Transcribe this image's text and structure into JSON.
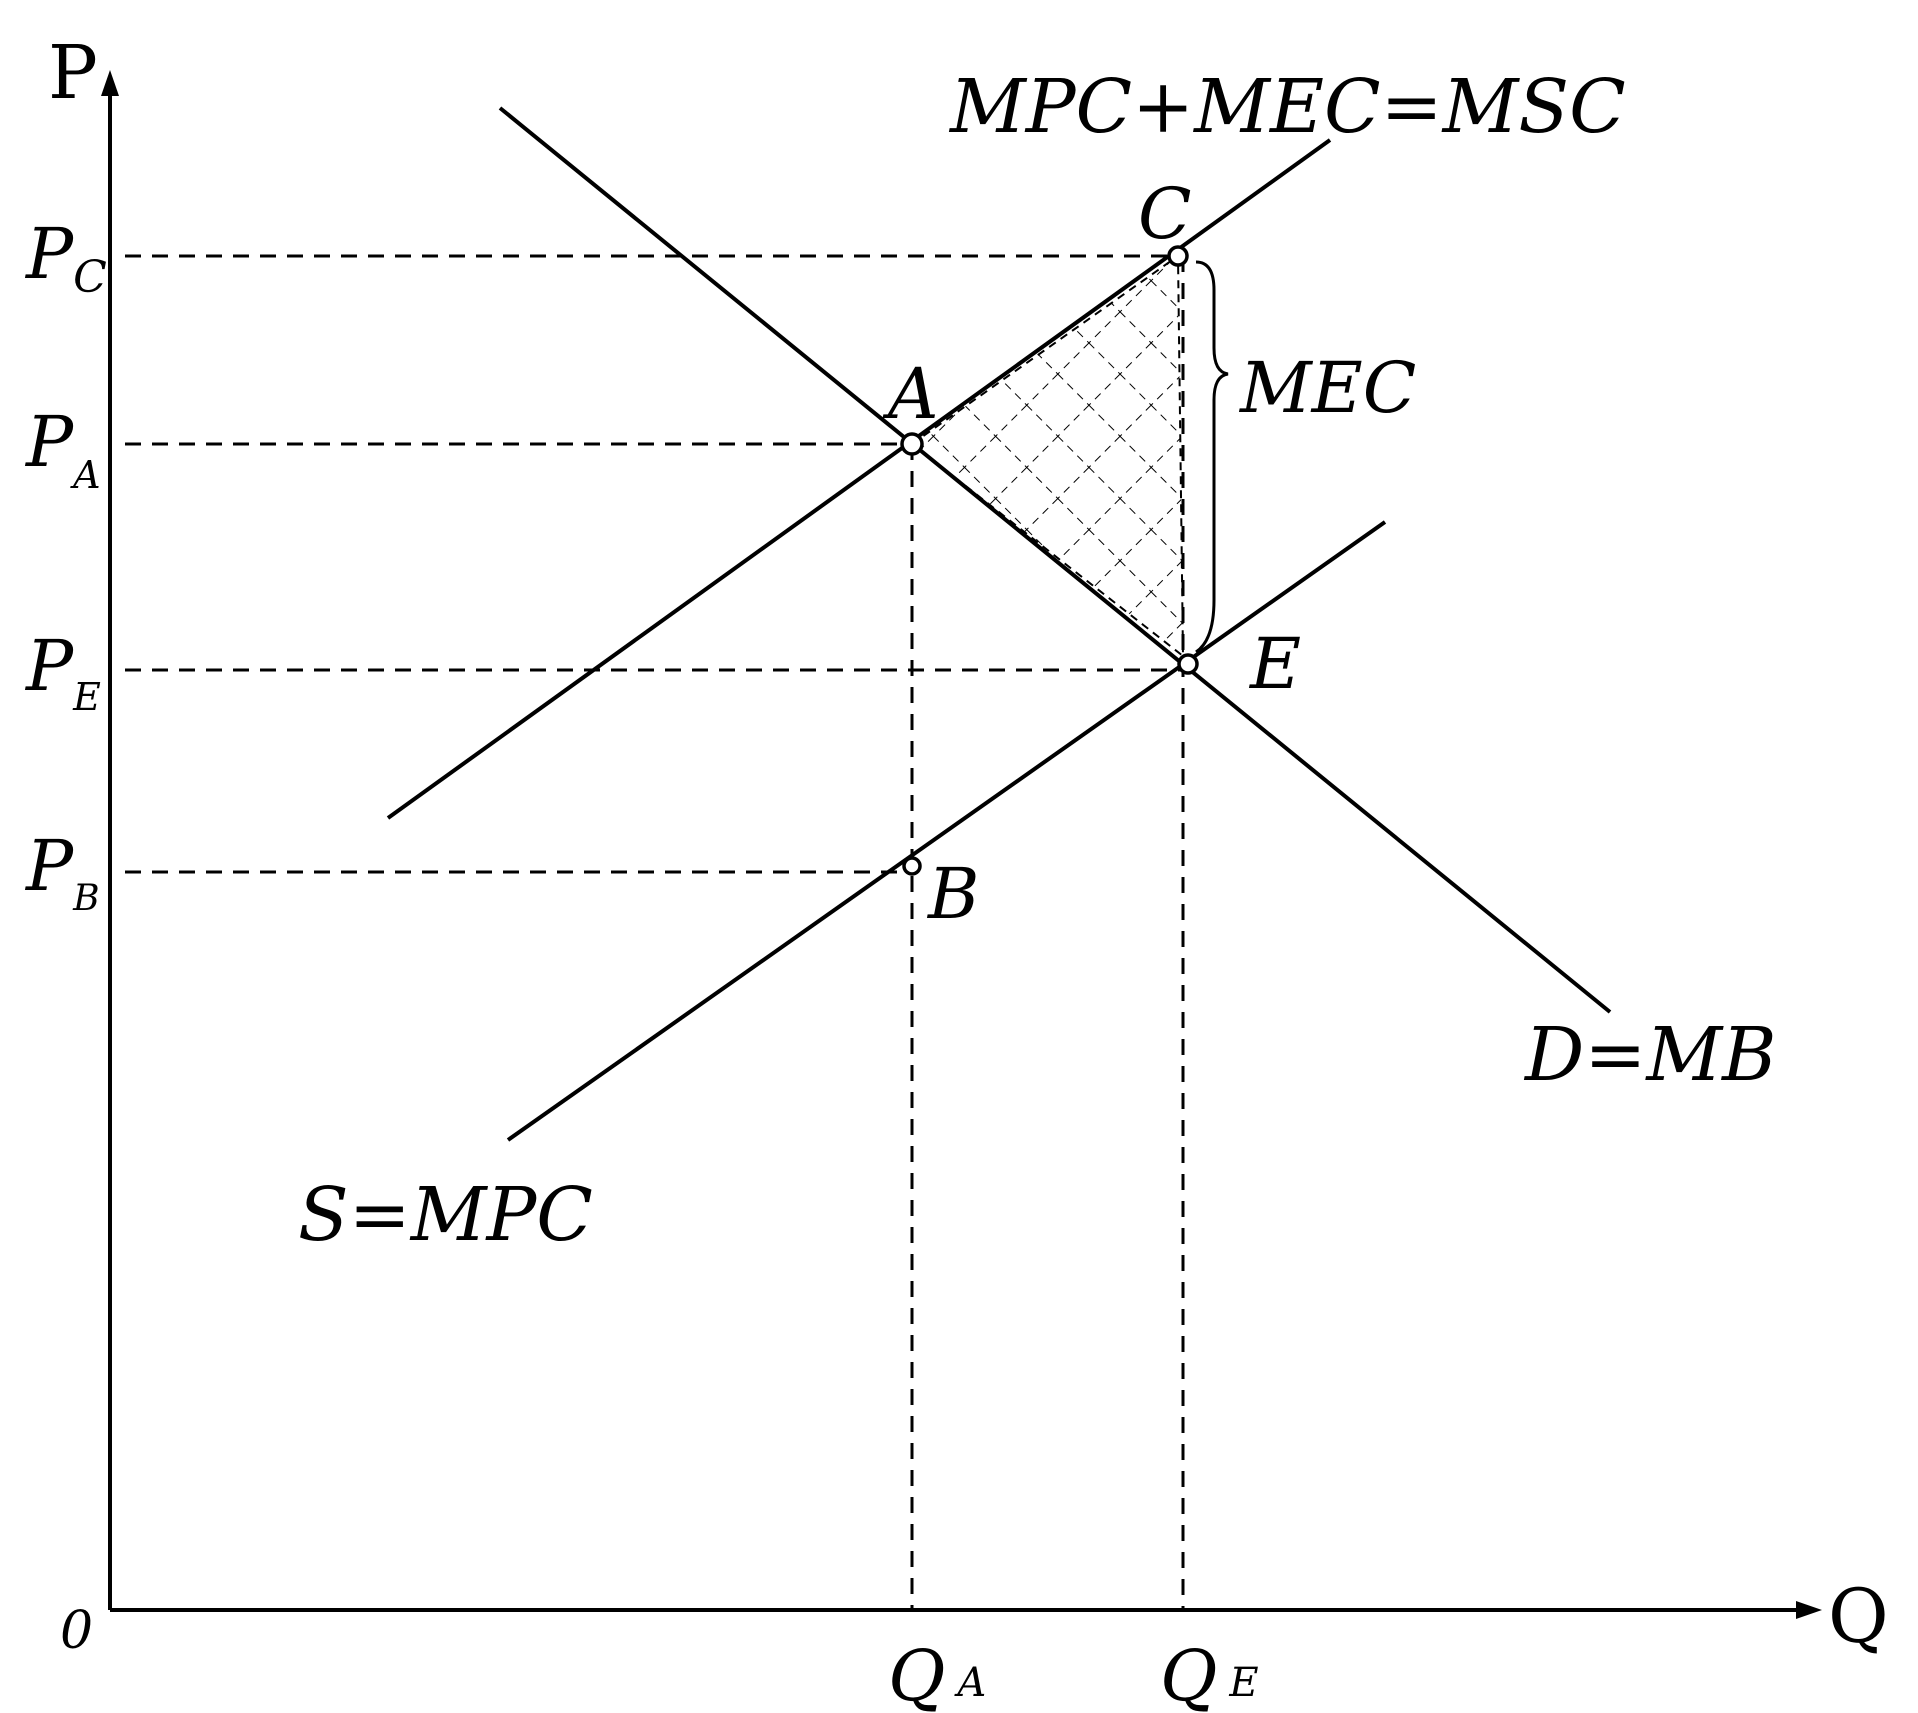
{
  "axes": {
    "y_label": "P",
    "x_label": "Q",
    "origin_label": "0"
  },
  "price_levels": {
    "pc": {
      "main": "P",
      "sub": "C"
    },
    "pa": {
      "main": "P",
      "sub": "A"
    },
    "pe": {
      "main": "P",
      "sub": "E"
    },
    "pb": {
      "main": "P",
      "sub": "B"
    }
  },
  "quantity_levels": {
    "qa": {
      "main": "Q",
      "sub": "A"
    },
    "qe": {
      "main": "Q",
      "sub": "E"
    }
  },
  "curves": {
    "msc": "MPC+MEC=MSC",
    "demand": "D=MB",
    "supply": "S=MPC"
  },
  "points": {
    "a": "A",
    "b": "B",
    "c": "C",
    "e": "E"
  },
  "brace_label": "MEC"
}
